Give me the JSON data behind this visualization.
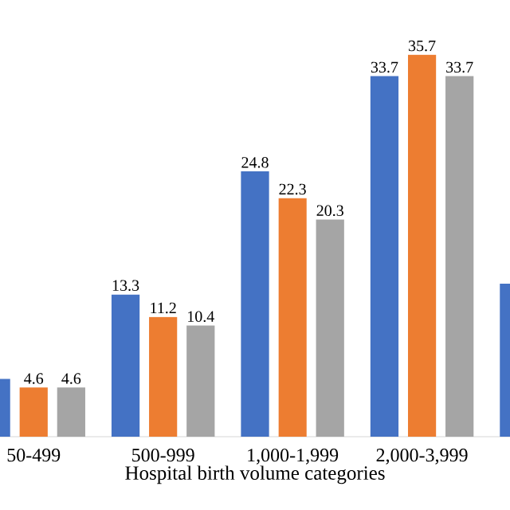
{
  "chart_data": {
    "type": "bar",
    "xlabel": "Hospital birth volume categories",
    "categories": [
      "50-499",
      "500-999",
      "1,000-1,999",
      "2,000-3,999",
      null
    ],
    "series": [
      {
        "color": "#4472c4",
        "values": [
          5.4,
          13.3,
          24.8,
          33.7,
          14.3
        ],
        "value_labels": [
          null,
          "13.3",
          "24.8",
          "33.7",
          null
        ]
      },
      {
        "color": "#ed7d31",
        "values": [
          4.6,
          11.2,
          22.3,
          35.7,
          null
        ],
        "value_labels": [
          "4.6",
          "11.2",
          "22.3",
          "35.7",
          null
        ]
      },
      {
        "color": "#a5a5a5",
        "values": [
          4.6,
          10.4,
          20.3,
          33.7,
          null
        ],
        "value_labels": [
          "4.6",
          "10.4",
          "20.3",
          "33.7",
          null
        ]
      }
    ]
  }
}
